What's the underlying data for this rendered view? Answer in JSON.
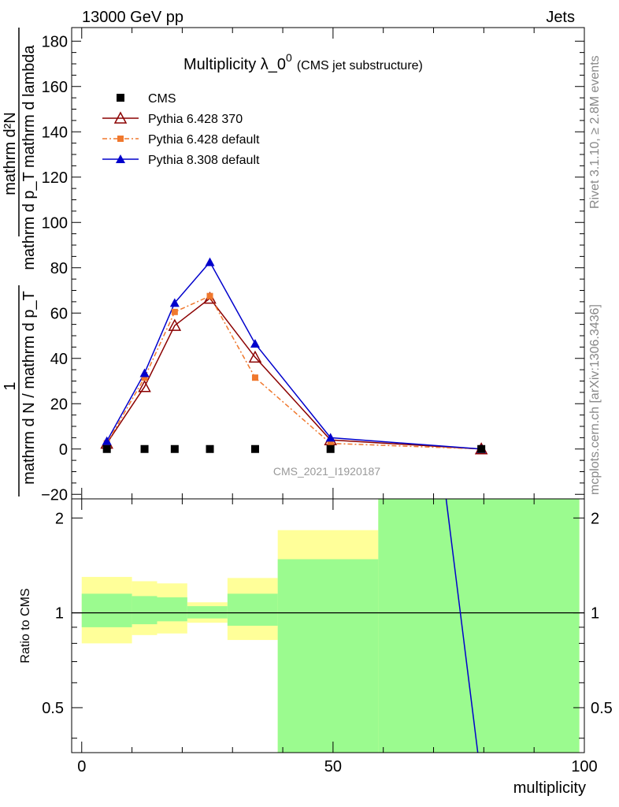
{
  "header": {
    "left": "13000 GeV pp",
    "right": "Jets"
  },
  "side_labels": {
    "rivet": "Rivet 3.1.10, ≥ 2.8M events",
    "mcplots": "mcplots.cern.ch [arXiv:1306.3436]"
  },
  "chart_data": [
    {
      "type": "line",
      "title": "Multiplicity λ_0",
      "title_sup": "0",
      "subtitle": "(CMS jet substructure)",
      "ylabel_numerator": "mathrm d²N",
      "ylabel_denominator": "mathrm d p_T mathrm d lambda",
      "ylabel_prefix_num": "1",
      "ylabel_prefix_den": "mathrm d N / mathrm d p_T",
      "watermark": "CMS_2021_I1920187",
      "xlim": [
        -2,
        100
      ],
      "ylim": [
        -22,
        186
      ],
      "yticks": [
        -20,
        0,
        20,
        40,
        60,
        80,
        100,
        120,
        140,
        160,
        180
      ],
      "ytick_labels": [
        "−20",
        "0",
        "20",
        "40",
        "60",
        "80",
        "100",
        "120",
        "140",
        "160",
        "180"
      ],
      "legend_position": "top-left",
      "series": [
        {
          "name": "CMS",
          "color": "#000000",
          "marker": "square",
          "x": [
            5,
            12.5,
            18.5,
            25.5,
            34.5,
            49.5,
            79.5
          ],
          "y": [
            0,
            0,
            0,
            0,
            0,
            0,
            0
          ]
        },
        {
          "name": "Pythia 6.428 370",
          "color": "#8b0000",
          "marker": "open-triangle",
          "dash": "",
          "x": [
            5,
            12.5,
            18.5,
            25.5,
            34.5,
            49.5,
            79.5
          ],
          "y": [
            2.5,
            27.5,
            54.5,
            66.5,
            40.5,
            4,
            0
          ]
        },
        {
          "name": "Pythia 6.428 default",
          "color": "#f0782d",
          "marker": "square-small",
          "dash": "6,3,2,3",
          "x": [
            5,
            12.5,
            18.5,
            25.5,
            34.5,
            49.5,
            79.5
          ],
          "y": [
            2.5,
            31.5,
            60.5,
            67.5,
            31.5,
            2.5,
            0
          ]
        },
        {
          "name": "Pythia 8.308 default",
          "color": "#0000cc",
          "marker": "filled-triangle",
          "dash": "",
          "x": [
            5,
            12.5,
            18.5,
            25.5,
            34.5,
            49.5,
            79.5
          ],
          "y": [
            3.5,
            33.5,
            64.5,
            82.5,
            46.5,
            5,
            0
          ]
        }
      ]
    },
    {
      "type": "line",
      "ylabel": "Ratio to CMS",
      "xlabel": "multiplicity",
      "xlim": [
        -2,
        100
      ],
      "ylim": [
        0.36,
        2.3
      ],
      "ylog": true,
      "xticks": [
        0,
        50,
        100
      ],
      "xtick_labels": [
        "0",
        "50",
        "100"
      ],
      "yticks": [
        0.5,
        1,
        2
      ],
      "ytick_labels": [
        "0.5",
        "1",
        "2"
      ],
      "band_edges": [
        0,
        10,
        15,
        21,
        29,
        39,
        59,
        99
      ],
      "band_inner": [
        [
          0.9,
          1.15
        ],
        [
          0.92,
          1.13
        ],
        [
          0.94,
          1.12
        ],
        [
          0.96,
          1.05
        ],
        [
          0.91,
          1.15
        ],
        [
          0.3,
          1.48
        ],
        [
          0.3,
          3
        ]
      ],
      "band_outer": [
        [
          0.8,
          1.3
        ],
        [
          0.85,
          1.26
        ],
        [
          0.86,
          1.24
        ],
        [
          0.93,
          1.08
        ],
        [
          0.82,
          1.29
        ],
        [
          0.3,
          1.83
        ],
        [
          0.3,
          3
        ]
      ],
      "inner_color": "#9bfb8f",
      "outer_color": "#ffff99",
      "reference": 1,
      "series": [
        {
          "name": "",
          "color": "#0000cc",
          "x": [
            72.5,
            78.8
          ],
          "y": [
            2.3,
            0.36
          ]
        }
      ]
    }
  ]
}
